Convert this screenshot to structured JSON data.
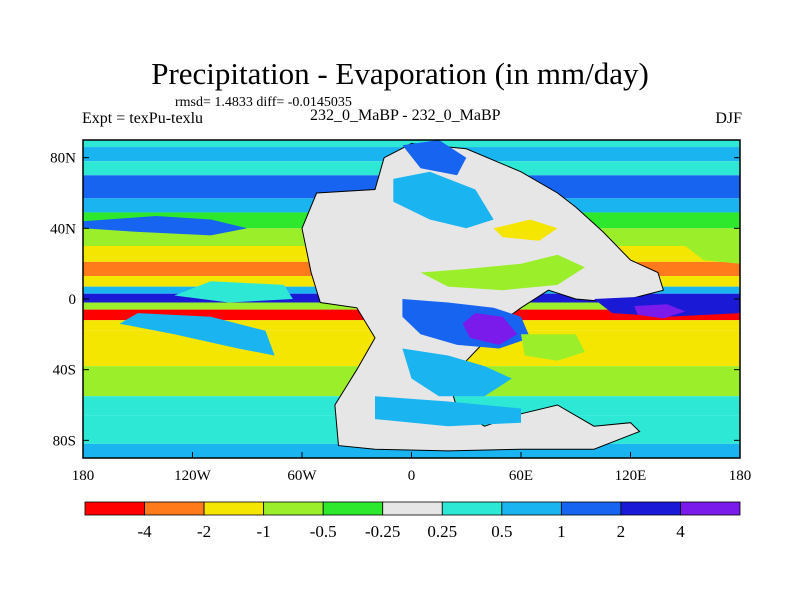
{
  "header": {
    "title": "Precipitation - Evaporation (in mm/day)",
    "stats": "rmsd= 1.4833 diff= -0.0145035",
    "experiment": "Expt = texPu-texlu",
    "center_label": "232_0_MaBP - 232_0_MaBP",
    "season": "DJF"
  },
  "chart_data": {
    "type": "heatmap",
    "title": "Precipitation - Evaporation (in mm/day)",
    "projection": "cylindrical equidistant",
    "xlim": [
      -180,
      180
    ],
    "ylim": [
      -90,
      90
    ],
    "x_ticks": [
      {
        "value": -180,
        "label": "180"
      },
      {
        "value": -120,
        "label": "120W"
      },
      {
        "value": -60,
        "label": "60W"
      },
      {
        "value": 0,
        "label": "0"
      },
      {
        "value": 60,
        "label": "60E"
      },
      {
        "value": 120,
        "label": "120E"
      },
      {
        "value": 180,
        "label": "180"
      }
    ],
    "y_ticks": [
      {
        "value": 80,
        "label": "80N"
      },
      {
        "value": 40,
        "label": "40N"
      },
      {
        "value": 0,
        "label": "0"
      },
      {
        "value": -40,
        "label": "40S"
      },
      {
        "value": -80,
        "label": "80S"
      }
    ],
    "colorbar": {
      "colors": [
        "#ff0000",
        "#ff7a1a",
        "#f5e600",
        "#9bef2a",
        "#2ee82e",
        "#e6e6e6",
        "#2ee8d6",
        "#1ab4f0",
        "#1664f0",
        "#1a1ad6",
        "#7a1aeb"
      ],
      "labels": [
        "-4",
        "-2",
        "-1",
        "-0.5",
        "-0.25",
        "0.25",
        "0.5",
        "1",
        "2",
        "4"
      ]
    },
    "zonal_bands": [
      {
        "lat_max": 90,
        "lat_min": 86,
        "level": 6
      },
      {
        "lat_max": 86,
        "lat_min": 78,
        "level": 7
      },
      {
        "lat_max": 78,
        "lat_min": 70,
        "level": 6
      },
      {
        "lat_max": 70,
        "lat_min": 57,
        "level": 8
      },
      {
        "lat_max": 57,
        "lat_min": 49,
        "level": 7
      },
      {
        "lat_max": 49,
        "lat_min": 40,
        "level": 4
      },
      {
        "lat_max": 40,
        "lat_min": 30,
        "level": 3
      },
      {
        "lat_max": 30,
        "lat_min": 21,
        "level": 2
      },
      {
        "lat_max": 21,
        "lat_min": 13,
        "level": 1
      },
      {
        "lat_max": 13,
        "lat_min": 7,
        "level": 2
      },
      {
        "lat_max": 7,
        "lat_min": 3,
        "level": 7
      },
      {
        "lat_max": 3,
        "lat_min": -2,
        "level": 9
      },
      {
        "lat_max": -2,
        "lat_min": -6,
        "level": 3
      },
      {
        "lat_max": -6,
        "lat_min": -12,
        "level": 0
      },
      {
        "lat_max": -12,
        "lat_min": -18,
        "level": 2
      },
      {
        "lat_max": -18,
        "lat_min": -38,
        "level": 2
      },
      {
        "lat_max": -38,
        "lat_min": -55,
        "level": 3
      },
      {
        "lat_max": -55,
        "lat_min": -66,
        "level": 6
      },
      {
        "lat_max": -66,
        "lat_min": -82,
        "level": 6
      },
      {
        "lat_max": -82,
        "lat_min": -90,
        "level": 7
      }
    ],
    "regions": [
      {
        "level": 5,
        "outline": true,
        "lonlat": [
          [
            -52,
            60
          ],
          [
            -20,
            62
          ],
          [
            -15,
            80
          ],
          [
            0,
            88
          ],
          [
            30,
            85
          ],
          [
            60,
            72
          ],
          [
            80,
            60
          ],
          [
            90,
            52
          ],
          [
            105,
            38
          ],
          [
            120,
            22
          ],
          [
            135,
            15
          ],
          [
            138,
            5
          ],
          [
            112,
            -2
          ],
          [
            90,
            0
          ],
          [
            75,
            5
          ],
          [
            60,
            -5
          ],
          [
            48,
            -14
          ],
          [
            42,
            -22
          ],
          [
            30,
            -35
          ],
          [
            20,
            -45
          ],
          [
            25,
            -62
          ],
          [
            40,
            -72
          ],
          [
            60,
            -65
          ],
          [
            80,
            -60
          ],
          [
            100,
            -72
          ],
          [
            120,
            -70
          ],
          [
            125,
            -75
          ],
          [
            100,
            -85
          ],
          [
            60,
            -85
          ],
          [
            20,
            -86
          ],
          [
            -20,
            -85
          ],
          [
            -40,
            -83
          ],
          [
            -42,
            -60
          ],
          [
            -30,
            -40
          ],
          [
            -20,
            -22
          ],
          [
            -30,
            -5
          ],
          [
            -50,
            -2
          ],
          [
            -55,
            15
          ],
          [
            -60,
            40
          ]
        ]
      },
      {
        "level": 7,
        "outline": false,
        "lonlat": [
          [
            -10,
            68
          ],
          [
            10,
            72
          ],
          [
            35,
            62
          ],
          [
            45,
            45
          ],
          [
            30,
            40
          ],
          [
            10,
            45
          ],
          [
            -10,
            55
          ]
        ]
      },
      {
        "level": 8,
        "outline": false,
        "lonlat": [
          [
            -5,
            87
          ],
          [
            15,
            90
          ],
          [
            30,
            80
          ],
          [
            25,
            70
          ],
          [
            5,
            74
          ]
        ]
      },
      {
        "level": 3,
        "outline": false,
        "lonlat": [
          [
            5,
            15
          ],
          [
            30,
            17
          ],
          [
            60,
            20
          ],
          [
            80,
            25
          ],
          [
            95,
            18
          ],
          [
            80,
            8
          ],
          [
            50,
            5
          ],
          [
            20,
            7
          ]
        ]
      },
      {
        "level": 2,
        "outline": false,
        "lonlat": [
          [
            45,
            40
          ],
          [
            65,
            45
          ],
          [
            80,
            40
          ],
          [
            70,
            33
          ],
          [
            50,
            35
          ]
        ]
      },
      {
        "level": 8,
        "outline": false,
        "lonlat": [
          [
            -5,
            0
          ],
          [
            20,
            -2
          ],
          [
            45,
            -5
          ],
          [
            60,
            -10
          ],
          [
            65,
            -22
          ],
          [
            48,
            -28
          ],
          [
            25,
            -26
          ],
          [
            5,
            -20
          ],
          [
            -5,
            -10
          ]
        ]
      },
      {
        "level": 10,
        "outline": false,
        "lonlat": [
          [
            35,
            -8
          ],
          [
            50,
            -10
          ],
          [
            58,
            -20
          ],
          [
            48,
            -26
          ],
          [
            32,
            -22
          ],
          [
            28,
            -14
          ]
        ]
      },
      {
        "level": 7,
        "outline": false,
        "lonlat": [
          [
            -5,
            -28
          ],
          [
            20,
            -32
          ],
          [
            40,
            -38
          ],
          [
            55,
            -45
          ],
          [
            40,
            -55
          ],
          [
            15,
            -55
          ],
          [
            0,
            -45
          ]
        ]
      },
      {
        "level": 3,
        "outline": false,
        "lonlat": [
          [
            60,
            -20
          ],
          [
            90,
            -20
          ],
          [
            95,
            -30
          ],
          [
            80,
            -35
          ],
          [
            62,
            -32
          ]
        ]
      },
      {
        "level": 7,
        "outline": false,
        "lonlat": [
          [
            -20,
            -55
          ],
          [
            20,
            -58
          ],
          [
            60,
            -62
          ],
          [
            60,
            -70
          ],
          [
            20,
            -72
          ],
          [
            -20,
            -68
          ]
        ]
      },
      {
        "level": 9,
        "outline": false,
        "lonlat": [
          [
            100,
            0
          ],
          [
            140,
            2
          ],
          [
            180,
            0
          ],
          [
            180,
            -8
          ],
          [
            140,
            -10
          ],
          [
            110,
            -8
          ]
        ]
      },
      {
        "level": 10,
        "outline": false,
        "lonlat": [
          [
            122,
            -4
          ],
          [
            140,
            -3
          ],
          [
            150,
            -7
          ],
          [
            138,
            -11
          ],
          [
            124,
            -9
          ]
        ]
      },
      {
        "level": 8,
        "outline": false,
        "lonlat": [
          [
            -180,
            44
          ],
          [
            -140,
            47
          ],
          [
            -110,
            45
          ],
          [
            -90,
            40
          ],
          [
            -110,
            36
          ],
          [
            -150,
            38
          ],
          [
            -180,
            40
          ]
        ]
      },
      {
        "level": 6,
        "outline": false,
        "lonlat": [
          [
            -110,
            10
          ],
          [
            -70,
            8
          ],
          [
            -65,
            0
          ],
          [
            -100,
            -2
          ],
          [
            -130,
            2
          ]
        ]
      },
      {
        "level": 7,
        "outline": false,
        "lonlat": [
          [
            -150,
            -8
          ],
          [
            -110,
            -10
          ],
          [
            -80,
            -18
          ],
          [
            -75,
            -32
          ],
          [
            -95,
            -28
          ],
          [
            -130,
            -20
          ],
          [
            -160,
            -14
          ]
        ]
      },
      {
        "level": 3,
        "outline": false,
        "lonlat": [
          [
            150,
            30
          ],
          [
            180,
            32
          ],
          [
            180,
            20
          ],
          [
            160,
            22
          ]
        ]
      }
    ]
  }
}
